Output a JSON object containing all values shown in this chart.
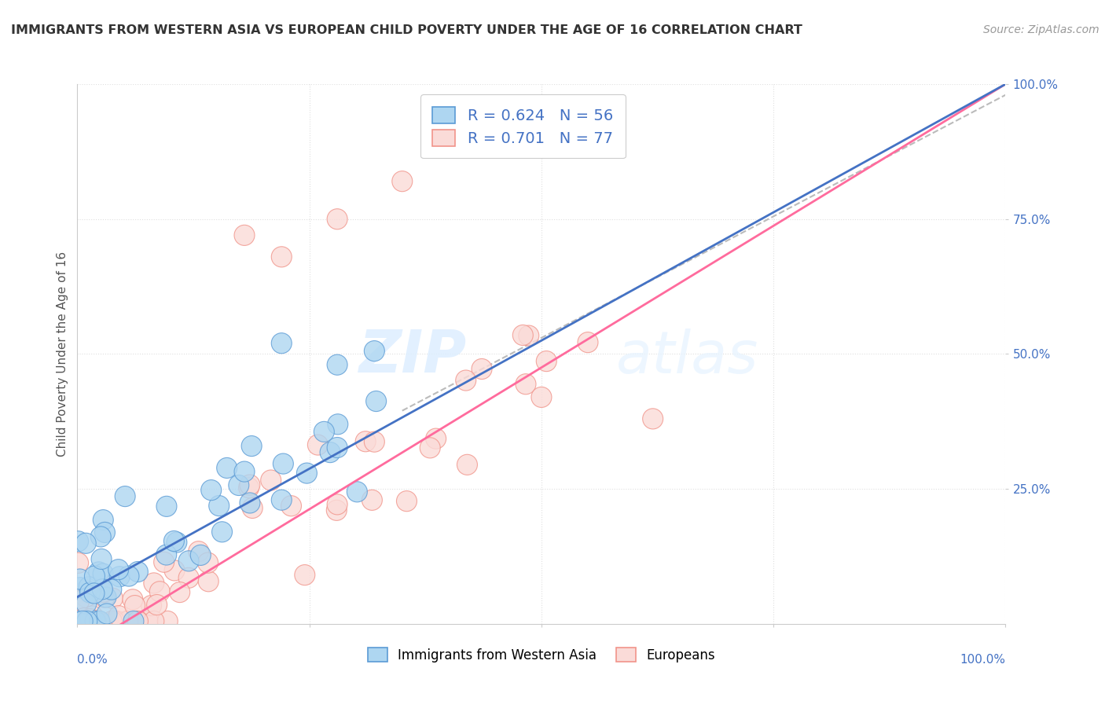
{
  "title": "IMMIGRANTS FROM WESTERN ASIA VS EUROPEAN CHILD POVERTY UNDER THE AGE OF 16 CORRELATION CHART",
  "source": "Source: ZipAtlas.com",
  "ylabel": "Child Poverty Under the Age of 16",
  "legend_label1": "Immigrants from Western Asia",
  "legend_label2": "Europeans",
  "R1": 0.624,
  "N1": 56,
  "R2": 0.701,
  "N2": 77,
  "watermark_zip": "ZIP",
  "watermark_atlas": "atlas",
  "color_blue_line": "#4472C4",
  "color_pink_line": "#FF6B9D",
  "color_dashed": "#BBBBBB",
  "title_color": "#333333",
  "tick_color": "#4472C4",
  "scatter_blue_fill": "#AED6F1",
  "scatter_blue_edge": "#5B9BD5",
  "scatter_pink_fill": "#FADBD8",
  "scatter_pink_edge": "#F1948A",
  "grid_color": "#E0E0E0",
  "grid_style": "dotted"
}
